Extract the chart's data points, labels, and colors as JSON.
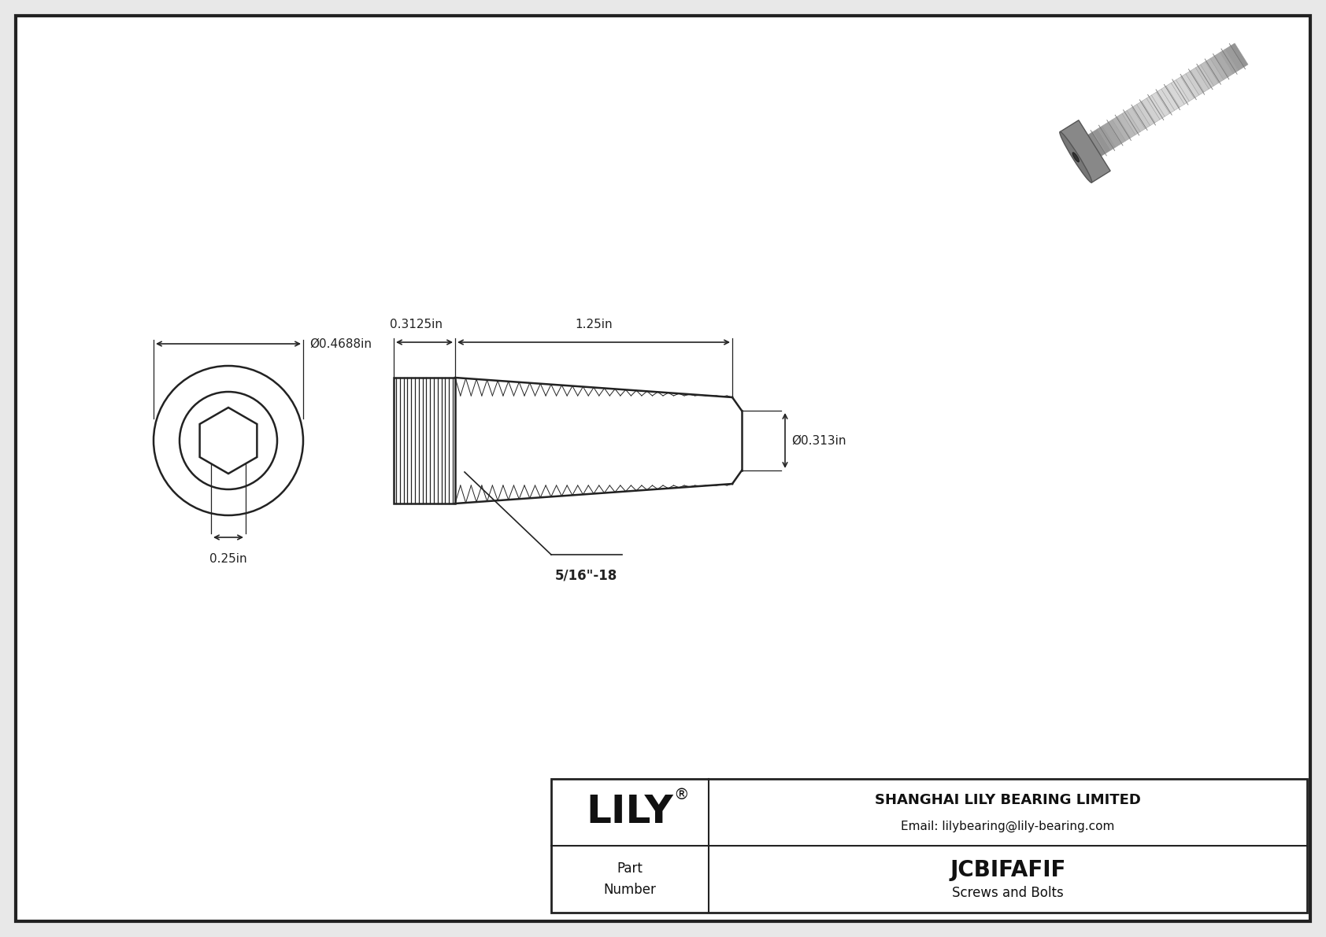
{
  "bg_color": "#e8e8e8",
  "drawing_bg": "#ffffff",
  "border_color": "#222222",
  "line_color": "#222222",
  "title": "JCBIFAFIF",
  "subtitle": "Screws and Bolts",
  "company": "SHANGHAI LILY BEARING LIMITED",
  "email": "Email: lilybearing@lily-bearing.com",
  "part_label": "Part\nNumber",
  "logo": "LILY",
  "logo_reg": "®",
  "dim_head_width": "0.3125in",
  "dim_thread_length": "1.25in",
  "dim_thread_dia": "Ø0.313in",
  "dim_front_dia": "Ø0.4688in",
  "dim_front_height": "0.25in",
  "dim_thread_label": "5/16\"-18"
}
